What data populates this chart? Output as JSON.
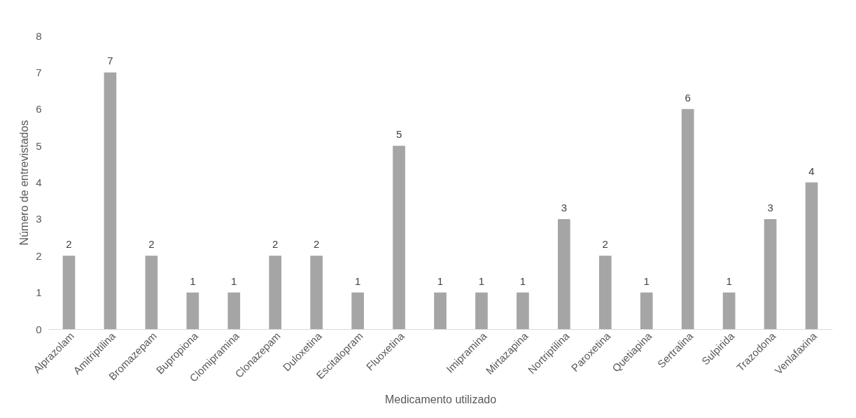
{
  "chart_data": {
    "type": "bar",
    "xlabel": "Medicamento utilizado",
    "ylabel": "Número de entrevistados",
    "categories": [
      "Alprazolam",
      "Amitriptilina",
      "Bromazepam",
      "Bupropiona",
      "Clomipramina",
      "Clonazepam",
      "Duloxetina",
      "Escitalopram",
      "Fluoxetina",
      null,
      "Imipramina",
      "Mirtazapina",
      "Nortriptilina",
      "Paroxetina",
      "Quetiapina",
      "Sertralina",
      "Sulpirida",
      "Trazodona",
      "Venlafaxina"
    ],
    "values": [
      2,
      7,
      2,
      1,
      1,
      2,
      2,
      1,
      5,
      1,
      1,
      1,
      3,
      2,
      1,
      6,
      1,
      3,
      4
    ],
    "color": "#a5a5a5",
    "ylim": [
      0,
      8
    ],
    "yticks": [
      0,
      1,
      2,
      3,
      4,
      5,
      6,
      7,
      8
    ],
    "grid": false,
    "data_labels": true
  }
}
